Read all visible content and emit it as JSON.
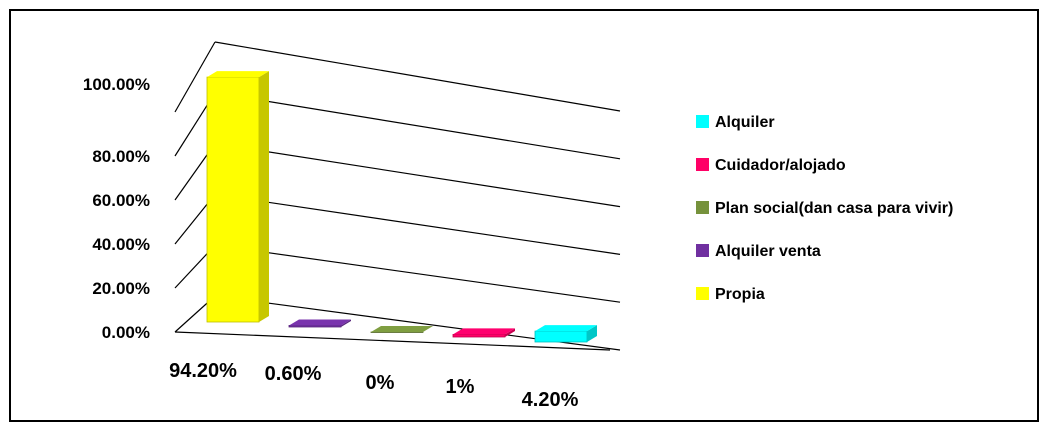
{
  "chart_data": {
    "type": "bar",
    "style": "3d-columns",
    "ylim": [
      0,
      100
    ],
    "y_ticks": [
      "0.00%",
      "20.00%",
      "40.00%",
      "60.00%",
      "80.00%",
      "100.00%"
    ],
    "grid": true,
    "legend_position": "right",
    "series": [
      {
        "name": "Propia",
        "value": 94.2,
        "data_label": "94.20%",
        "color": "#ffff00"
      },
      {
        "name": "Alquiler  venta",
        "value": 0.6,
        "data_label": "0.60%",
        "color": "#7030a0"
      },
      {
        "name": "Plan social(dan casa para vivir)",
        "value": 0,
        "data_label": "0%",
        "color": "#76923c"
      },
      {
        "name": "Cuidador/alojado",
        "value": 1,
        "data_label": "1%",
        "color": "#ff0066"
      },
      {
        "name": "Alquiler",
        "value": 4.2,
        "data_label": "4.20%",
        "color": "#00ffff"
      }
    ],
    "legend_order": [
      "Alquiler",
      "Cuidador/alojado",
      "Plan social(dan casa para vivir)",
      "Alquiler  venta",
      "Propia"
    ]
  }
}
